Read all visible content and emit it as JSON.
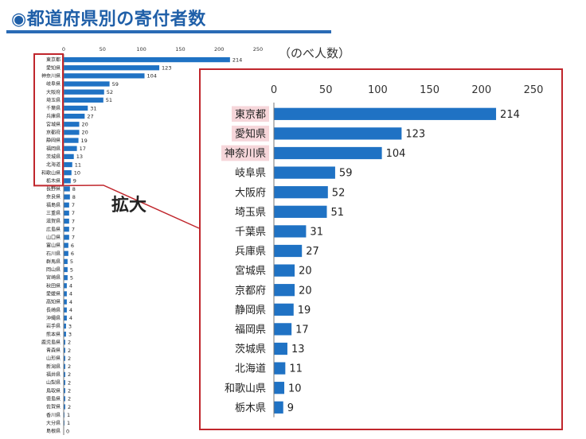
{
  "page": {
    "title": "◉都道府県別の寄付者数",
    "unit_label": "（のべ人数）",
    "zoom_label": "拡大"
  },
  "chart_data": [
    {
      "type": "bar",
      "orientation": "horizontal",
      "xlim": [
        0,
        250
      ],
      "ticks": [
        0,
        50,
        100,
        150,
        200,
        250
      ],
      "bar_color": "#1f72c4",
      "categories": [
        "東京都",
        "愛知県",
        "神奈川県",
        "岐阜県",
        "大阪府",
        "埼玉県",
        "千葉県",
        "兵庫県",
        "宮城県",
        "京都府",
        "静岡県",
        "福岡県",
        "茨城県",
        "北海道",
        "和歌山県",
        "栃木県",
        "長野県",
        "奈良県",
        "福島県",
        "三重県",
        "滋賀県",
        "広島県",
        "山口県",
        "富山県",
        "石川県",
        "群馬県",
        "岡山県",
        "宮崎県",
        "秋田県",
        "愛媛県",
        "高知県",
        "長崎県",
        "沖縄県",
        "岩手県",
        "熊本県",
        "鹿児島県",
        "青森県",
        "山形県",
        "新潟県",
        "福井県",
        "山梨県",
        "鳥取県",
        "徳島県",
        "佐賀県",
        "香川県",
        "大分県",
        "島根県"
      ],
      "values": [
        214,
        123,
        104,
        59,
        52,
        51,
        31,
        27,
        20,
        20,
        19,
        17,
        13,
        11,
        10,
        9,
        8,
        8,
        7,
        7,
        7,
        7,
        7,
        6,
        6,
        5,
        5,
        5,
        4,
        4,
        4,
        4,
        4,
        3,
        3,
        2,
        2,
        2,
        2,
        2,
        2,
        2,
        2,
        2,
        1,
        1,
        0
      ],
      "highlight_box_color": "#c0262c"
    },
    {
      "type": "bar",
      "orientation": "horizontal",
      "xlim": [
        0,
        250
      ],
      "ticks": [
        0,
        50,
        100,
        150,
        200,
        250
      ],
      "bar_color": "#1f72c4",
      "highlight_color": "#f6d6da",
      "categories": [
        "東京都",
        "愛知県",
        "神奈川県",
        "岐阜県",
        "大阪府",
        "埼玉県",
        "千葉県",
        "兵庫県",
        "宮城県",
        "京都府",
        "静岡県",
        "福岡県",
        "茨城県",
        "北海道",
        "和歌山県",
        "栃木県"
      ],
      "values": [
        214,
        123,
        104,
        59,
        52,
        51,
        31,
        27,
        20,
        20,
        19,
        17,
        13,
        11,
        10,
        9
      ],
      "highlighted": [
        "東京都",
        "愛知県",
        "神奈川県"
      ]
    }
  ]
}
